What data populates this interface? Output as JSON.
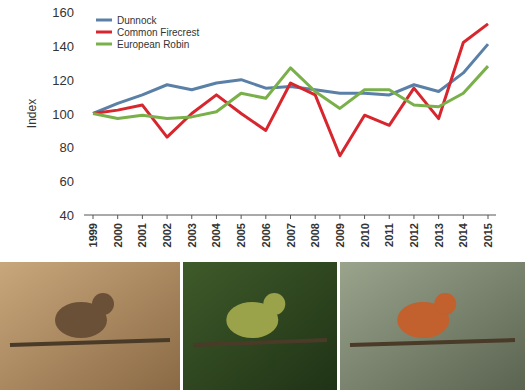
{
  "chart_data": {
    "type": "line",
    "y_label": "Index",
    "categories": [
      "1999",
      "2000",
      "2001",
      "2002",
      "2003",
      "2004",
      "2005",
      "2006",
      "2007",
      "2008",
      "2009",
      "2010",
      "2011",
      "2012",
      "2013",
      "2014",
      "2015"
    ],
    "series": [
      {
        "name": "Dunnock",
        "color": "#5b80a8",
        "values": [
          100,
          106,
          111,
          117,
          114,
          118,
          120,
          115,
          116,
          114,
          112,
          112,
          111,
          117,
          113,
          124,
          141
        ]
      },
      {
        "name": "Common Firecrest",
        "color": "#d7262d",
        "values": [
          100,
          102,
          105,
          86,
          100,
          111,
          100,
          90,
          118,
          111,
          75,
          99,
          93,
          115,
          97,
          142,
          153
        ]
      },
      {
        "name": "European Robin",
        "color": "#79b04a",
        "values": [
          100,
          97,
          99,
          97,
          98,
          101,
          112,
          109,
          127,
          113,
          103,
          114,
          114,
          105,
          104,
          112,
          128
        ]
      }
    ],
    "ylim": [
      40,
      160
    ],
    "yticks": [
      40,
      60,
      80,
      100,
      120,
      140,
      160
    ],
    "grid": false,
    "legend": "top-left"
  }
}
